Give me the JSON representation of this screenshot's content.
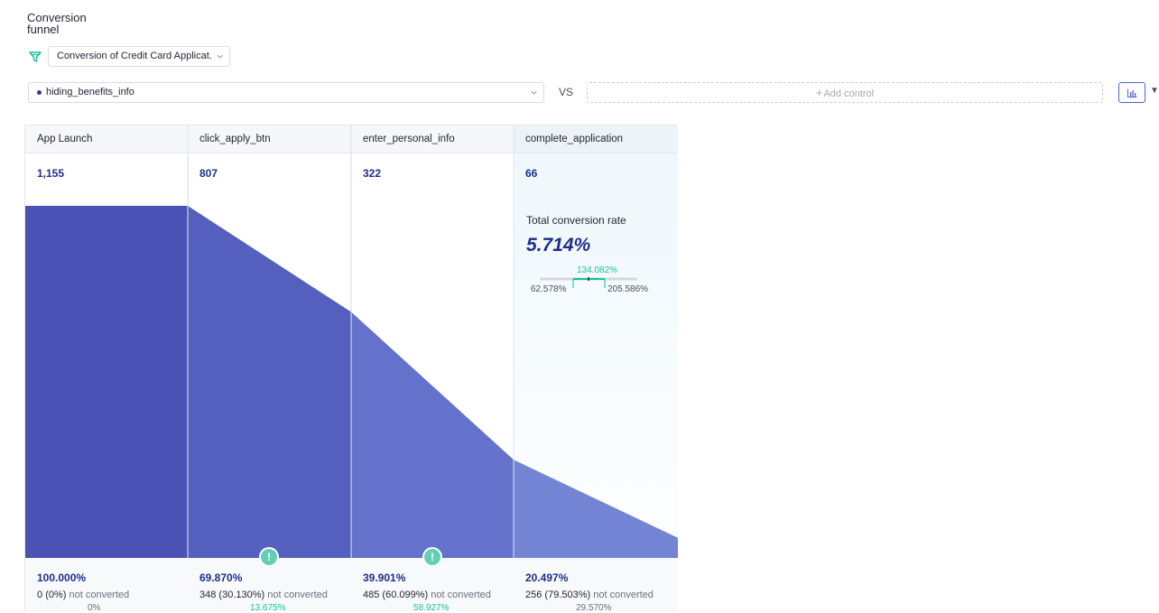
{
  "header": {
    "title": "Conversion funnel"
  },
  "funnel_select": {
    "value": "Conversion of Credit Card Applicat."
  },
  "variant_select": {
    "value": "hiding_benefits_info"
  },
  "compare": {
    "vs_label": "VS",
    "add_control_label": "Add control"
  },
  "colors": {
    "accent": "#4a63d9",
    "funnel_dark": "#4a53b5",
    "green": "#17c39b",
    "navy": "#1d2f8a"
  },
  "steps": [
    {
      "name": "App Launch",
      "count": "1,155",
      "conversion": "100.000%",
      "not_converted_num": "0",
      "not_converted_pct": "(0%)",
      "not_converted_label": "not converted",
      "sub": "0%",
      "rate": 1.0
    },
    {
      "name": "click_apply_btn",
      "count": "807",
      "conversion": "69.870%",
      "not_converted_num": "348",
      "not_converted_pct": "(30.130%)",
      "not_converted_label": "not converted",
      "sub": "13.675%",
      "rate": 0.6987
    },
    {
      "name": "enter_personal_info",
      "count": "322",
      "conversion": "39.901%",
      "not_converted_num": "485",
      "not_converted_pct": "(60.099%)",
      "not_converted_label": "not converted",
      "sub": "58.927%",
      "rate": 0.27879
    },
    {
      "name": "complete_application",
      "count": "66",
      "conversion": "20.497%",
      "not_converted_num": "256",
      "not_converted_pct": "(79.503%)",
      "not_converted_label": "not converted",
      "sub": "29.570%",
      "rate": 0.05714
    }
  ],
  "total": {
    "label": "Total conversion rate",
    "value": "5.714%",
    "ci_mid": "134.082%",
    "ci_low": "62.578%",
    "ci_high": "205.586%"
  },
  "icons": {
    "funnel": "funnel-icon",
    "chevron": "chevron-down-icon",
    "chart": "bar-chart-icon",
    "alert": "exclamation-icon"
  }
}
